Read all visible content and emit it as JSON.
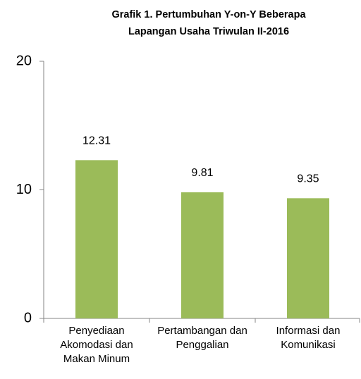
{
  "chart_data": {
    "type": "bar",
    "title": [
      "Grafik 1. Pertumbuhan Y-on-Y  Beberapa",
      "Lapangan Usaha  Triwulan II-2016"
    ],
    "categories": [
      "Penyediaan Akomodasi dan Makan Minum",
      "Pertambangan dan Penggalian",
      "Informasi dan Komunikasi"
    ],
    "values": [
      12.31,
      9.81,
      9.35
    ],
    "color": "#9bbb59",
    "ylim": [
      0,
      20
    ],
    "yticks": [
      0,
      10,
      20
    ],
    "grid": false
  }
}
